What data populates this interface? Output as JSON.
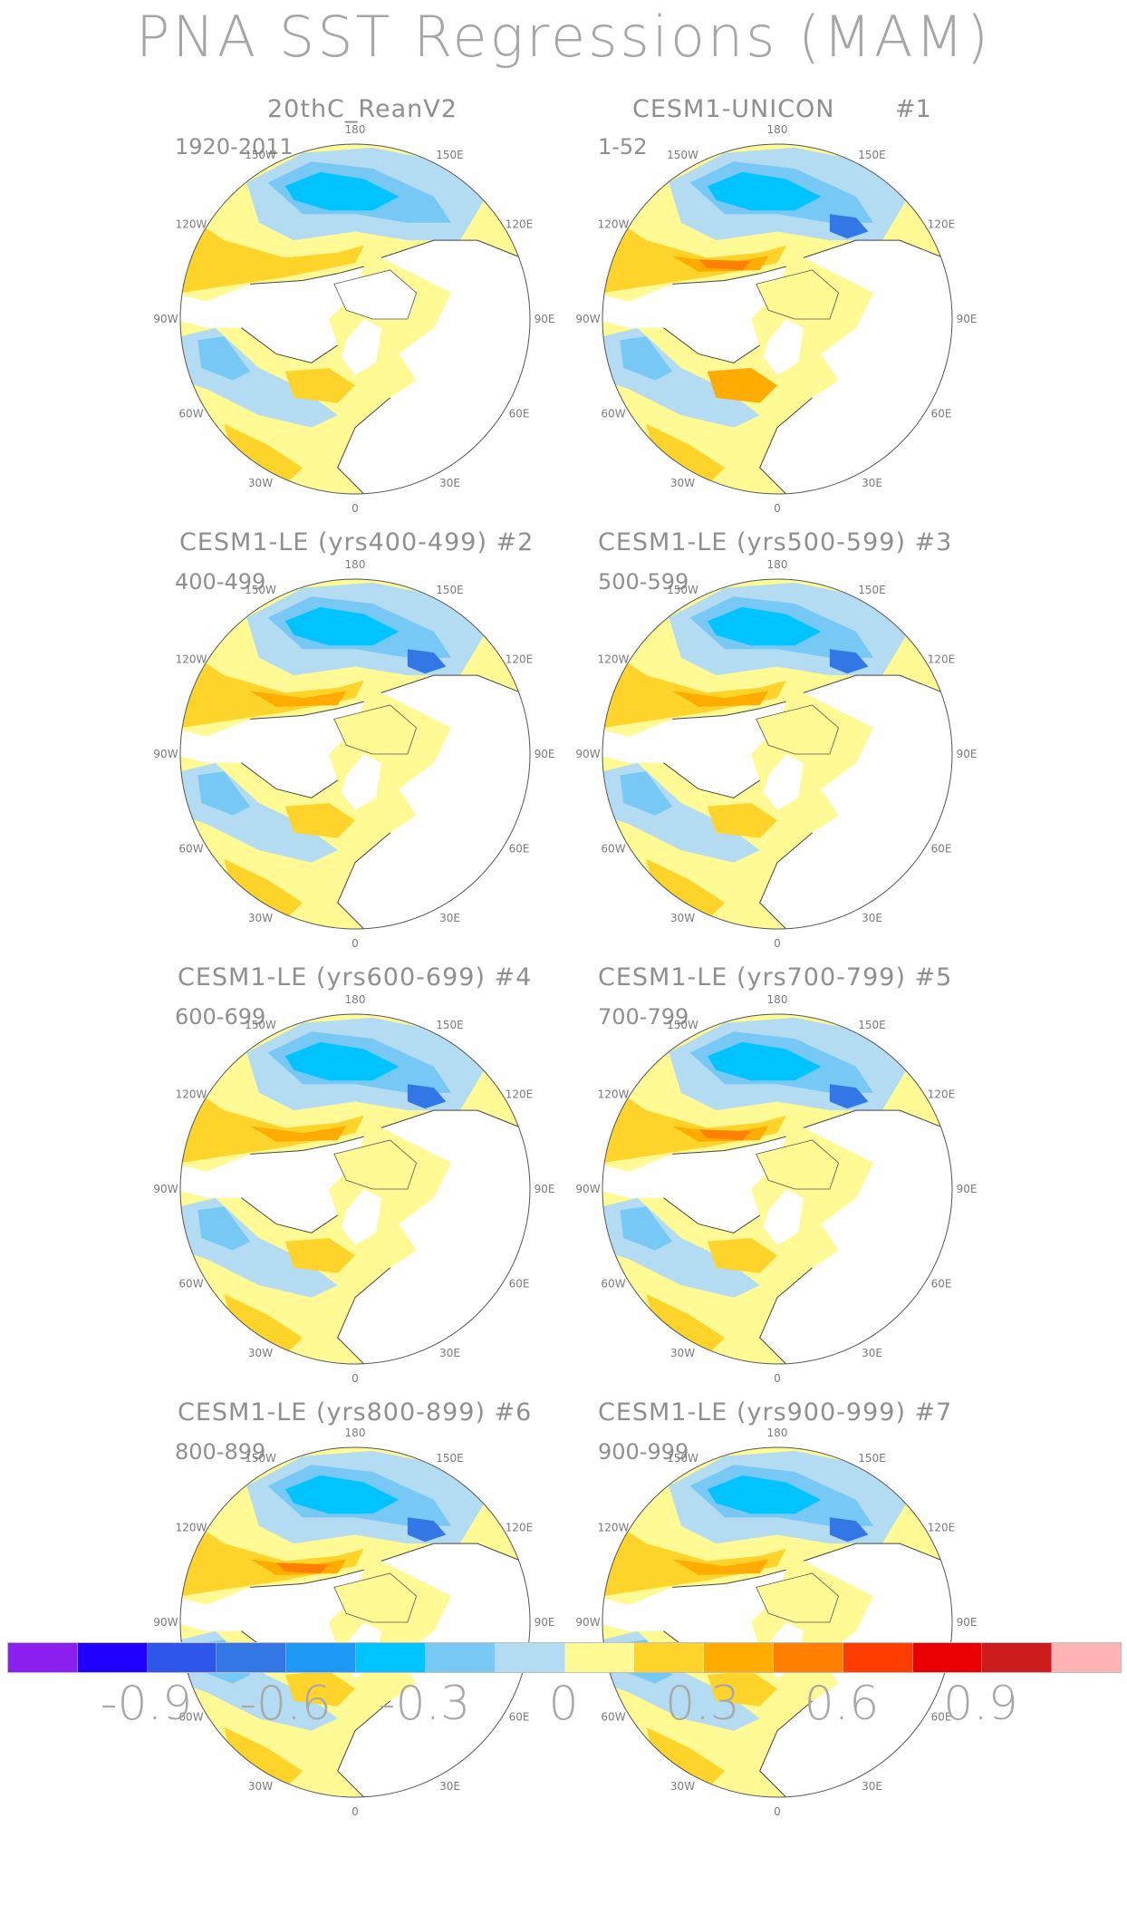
{
  "title": "PNA SST Regressions (MAM)",
  "panels": [
    {
      "title": "20thC_ReanV2",
      "range": "1920-2011",
      "num": ""
    },
    {
      "title": "CESM1-UNICON",
      "range": "1-52",
      "num": "#1"
    },
    {
      "title": "CESM1-LE (yrs400-499) #2",
      "range": "400-499",
      "num": ""
    },
    {
      "title": "CESM1-LE (yrs500-599) #3",
      "range": "500-599",
      "num": ""
    },
    {
      "title": "CESM1-LE (yrs600-699) #4",
      "range": "600-699",
      "num": ""
    },
    {
      "title": "CESM1-LE (yrs700-799) #5",
      "range": "700-799",
      "num": ""
    },
    {
      "title": "CESM1-LE (yrs800-899) #6",
      "range": "800-899",
      "num": ""
    },
    {
      "title": "CESM1-LE (yrs900-999) #7",
      "range": "900-999",
      "num": ""
    }
  ],
  "longitude_labels": [
    "180",
    "150E",
    "120E",
    "90E",
    "60E",
    "30E",
    "0",
    "30W",
    "60W",
    "90W",
    "120W",
    "150W"
  ],
  "colorbar": {
    "colors": [
      "#8a1ff0",
      "#1f00ff",
      "#2f56ea",
      "#3377e6",
      "#1d98f5",
      "#00c4ff",
      "#77c8f4",
      "#b3dcf2",
      "#fffa93",
      "#ffd42a",
      "#ffab00",
      "#ff7f00",
      "#ff3c00",
      "#ea0000",
      "#cc1b1b",
      "#ffb3b3"
    ],
    "labels": [
      "-0.9",
      "-0.6",
      "-0.3",
      "0",
      "0.3",
      "0.6",
      "0.9"
    ]
  }
}
